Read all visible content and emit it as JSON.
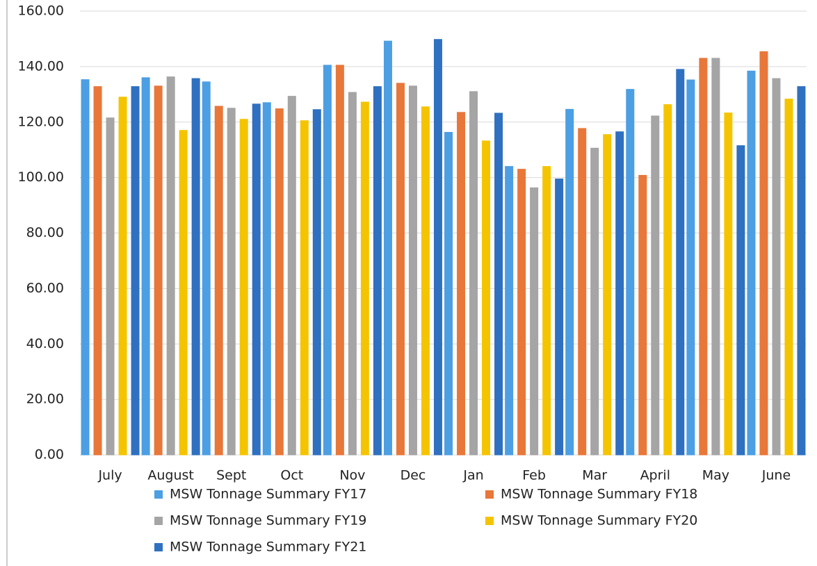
{
  "chart_data": {
    "type": "bar",
    "categories": [
      "July",
      "August",
      "Sept",
      "Oct",
      "Nov",
      "Dec",
      "Jan",
      "Feb",
      "Mar",
      "April",
      "May",
      "June"
    ],
    "series": [
      {
        "name": "MSW Tonnage Summary FY17",
        "color": "#4c9fe3",
        "values": [
          135.3,
          136,
          134.5,
          127,
          140.5,
          149.2,
          116.3,
          104,
          124.6,
          131.8,
          135.2,
          138.4
        ]
      },
      {
        "name": "MSW Tonnage Summary FY18",
        "color": "#e8773a",
        "values": [
          132.8,
          133,
          125.7,
          124.8,
          140.5,
          134,
          123.5,
          103,
          117.7,
          100.8,
          143,
          145.4
        ]
      },
      {
        "name": "MSW Tonnage Summary FY19",
        "color": "#a5a5a5",
        "values": [
          121.5,
          136.3,
          125,
          129.3,
          130.7,
          133,
          131,
          96.3,
          110.6,
          122.2,
          143,
          135.7
        ]
      },
      {
        "name": "MSW Tonnage Summary FY20",
        "color": "#f5c400",
        "values": [
          129,
          117,
          121,
          120.5,
          127.2,
          125.5,
          113.2,
          104,
          115.5,
          126.3,
          123.3,
          128.3
        ]
      },
      {
        "name": "MSW Tonnage Summary FY21",
        "color": "#2f70c0",
        "values": [
          132.8,
          135.7,
          126.5,
          124.5,
          132.8,
          149.8,
          123.2,
          99.5,
          116.5,
          139,
          111.5,
          132.8
        ]
      }
    ],
    "ylim": [
      0,
      160
    ],
    "yticks": [
      {
        "value": 0,
        "label": "0.00"
      },
      {
        "value": 20,
        "label": "20.00"
      },
      {
        "value": 40,
        "label": "40.00"
      },
      {
        "value": 60,
        "label": "60.00"
      },
      {
        "value": 80,
        "label": "80.00"
      },
      {
        "value": 100,
        "label": "100.00"
      },
      {
        "value": 120,
        "label": "120.00"
      },
      {
        "value": 140,
        "label": "140.00"
      },
      {
        "value": 160,
        "label": "160.00"
      }
    ],
    "grid": true,
    "legend": "bottom"
  }
}
